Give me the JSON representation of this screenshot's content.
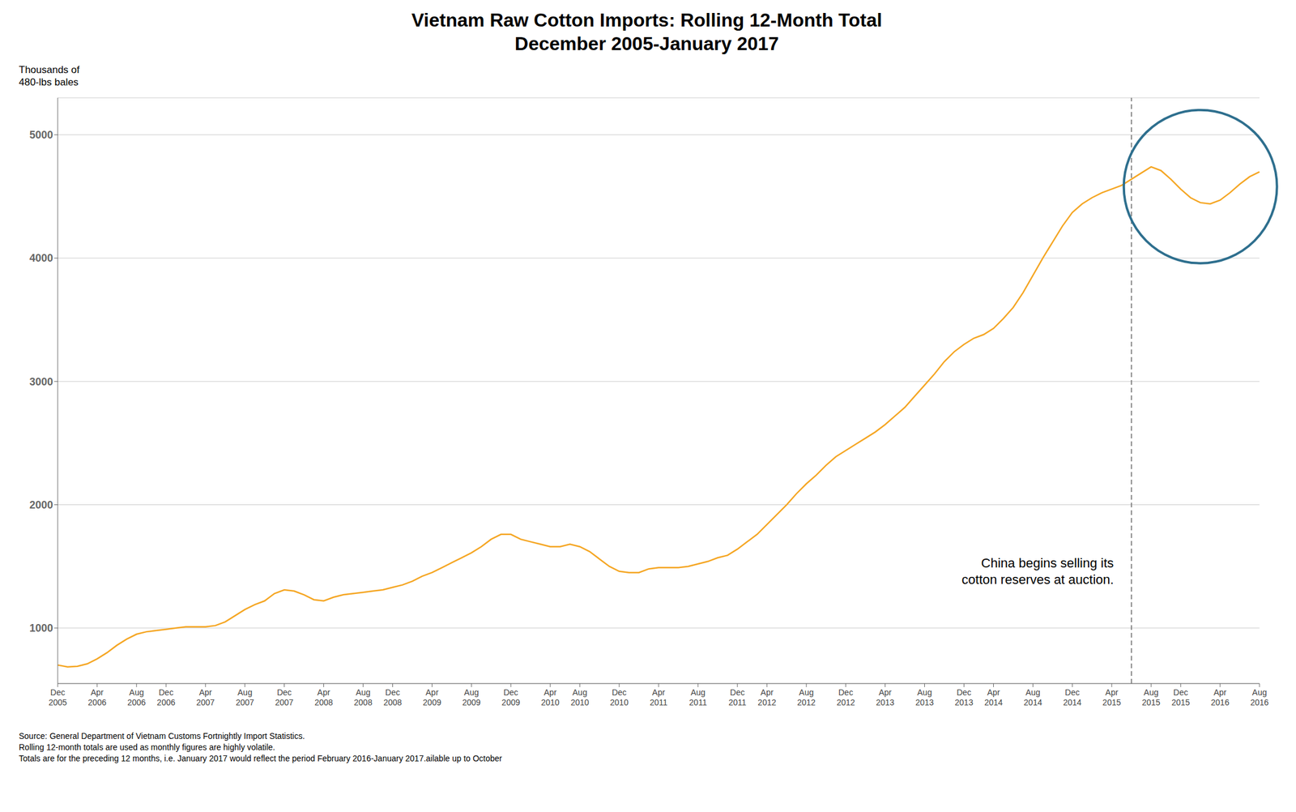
{
  "chart_data": {
    "type": "line",
    "title": "Vietnam Raw Cotton Imports: Rolling 12-Month Total",
    "subtitle": "December 2005-January 2017",
    "y_label": "Thousands of\n480-lbs bales",
    "source": "Source:  General Department of Vietnam Customs Fortnightly Import Statistics.\nRolling 12-month totals are used as monthly figures are highly volatile.\nTotals are for the preceding 12 months, i.e. January 2017 would reflect the period February 2016-January 2017.ailable up to October",
    "annotation": {
      "text": "China begins selling its\ncotton reserves at auction.",
      "x": 109
    },
    "highlight": {
      "x": 116,
      "y": 4580,
      "color": "#2E6F8E"
    },
    "color": "#F5A623",
    "line_style": "solid",
    "grid": "y",
    "ylim": [
      550,
      5300
    ],
    "yticks": [
      1000,
      2000,
      3000,
      4000,
      5000
    ],
    "categories": [
      "Dec\n2005",
      null,
      null,
      null,
      "Apr\n2006",
      null,
      null,
      null,
      "Aug\n2006",
      null,
      null,
      "Dec\n2006",
      null,
      null,
      null,
      "Apr\n2007",
      null,
      null,
      null,
      "Aug\n2007",
      null,
      null,
      null,
      "Dec\n2007",
      null,
      null,
      null,
      "Apr\n2008",
      null,
      null,
      null,
      "Aug\n2008",
      null,
      null,
      "Dec\n2008",
      null,
      null,
      null,
      "Apr\n2009",
      null,
      null,
      null,
      "Aug\n2009",
      null,
      null,
      null,
      "Dec\n2009",
      null,
      null,
      null,
      "Apr\n2010",
      null,
      null,
      "Aug\n2010",
      null,
      null,
      null,
      "Dec\n2010",
      null,
      null,
      null,
      "Apr\n2011",
      null,
      null,
      null,
      "Aug\n2011",
      null,
      null,
      null,
      "Dec\n2011",
      null,
      null,
      "Apr\n2012",
      null,
      null,
      null,
      "Aug\n2012",
      null,
      null,
      null,
      "Dec\n2012",
      null,
      null,
      null,
      "Apr\n2013",
      null,
      null,
      null,
      "Aug\n2013",
      null,
      null,
      null,
      "Dec\n2013",
      null,
      null,
      "Apr\n2014",
      null,
      null,
      null,
      "Aug\n2014",
      null,
      null,
      null,
      "Dec\n2014",
      null,
      null,
      null,
      "Apr\n2015",
      null,
      null,
      null,
      "Aug\n2015",
      null,
      null,
      "Dec\n2015",
      null,
      null,
      null,
      "Apr\n2016",
      null,
      null,
      null,
      "Aug\n2016"
    ],
    "values": [
      700,
      685,
      690,
      710,
      750,
      800,
      860,
      910,
      950,
      970,
      980,
      990,
      1000,
      1010,
      1010,
      1010,
      1020,
      1050,
      1100,
      1150,
      1190,
      1220,
      1280,
      1310,
      1300,
      1270,
      1230,
      1220,
      1250,
      1270,
      1280,
      1290,
      1300,
      1310,
      1330,
      1350,
      1380,
      1420,
      1450,
      1490,
      1530,
      1570,
      1610,
      1660,
      1720,
      1760,
      1760,
      1720,
      1700,
      1680,
      1660,
      1660,
      1680,
      1660,
      1620,
      1560,
      1500,
      1460,
      1450,
      1450,
      1480,
      1490,
      1490,
      1490,
      1500,
      1520,
      1540,
      1570,
      1590,
      1640,
      1700,
      1760,
      1840,
      1920,
      2000,
      2090,
      2170,
      2240,
      2320,
      2390,
      2440,
      2490,
      2540,
      2590,
      2650,
      2720,
      2790,
      2880,
      2970,
      3060,
      3160,
      3240,
      3300,
      3350,
      3380,
      3430,
      3510,
      3600,
      3720,
      3860,
      4000,
      4130,
      4260,
      4370,
      4440,
      4490,
      4530,
      4560,
      4590,
      4640,
      4690,
      4740,
      4710,
      4640,
      4560,
      4490,
      4450,
      4440,
      4470,
      4530,
      4600,
      4660,
      4700
    ]
  }
}
